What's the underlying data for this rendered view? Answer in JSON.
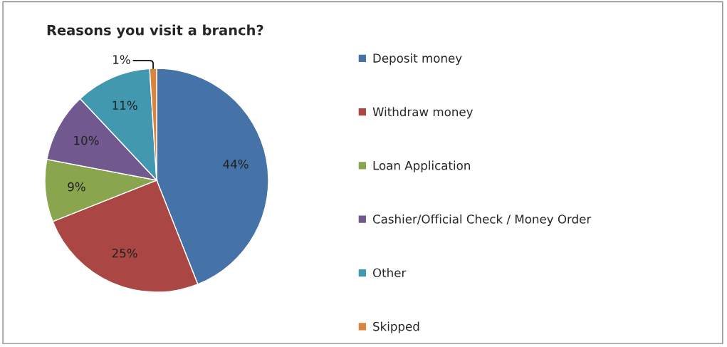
{
  "chart_data": {
    "type": "pie",
    "title": "Reasons you visit a branch?",
    "categories": [
      "Deposit money",
      "Withdraw money",
      "Loan Application",
      "Cashier/Official Check / Money Order",
      "Other",
      "Skipped"
    ],
    "values": [
      44,
      25,
      9,
      10,
      11,
      1
    ],
    "colors": [
      "#4572a7",
      "#aa4643",
      "#89a54e",
      "#71588f",
      "#4198af",
      "#db843d"
    ],
    "value_labels": [
      "44%",
      "25%",
      "9%",
      "10%",
      "11%",
      "1%"
    ],
    "legend": "right"
  }
}
